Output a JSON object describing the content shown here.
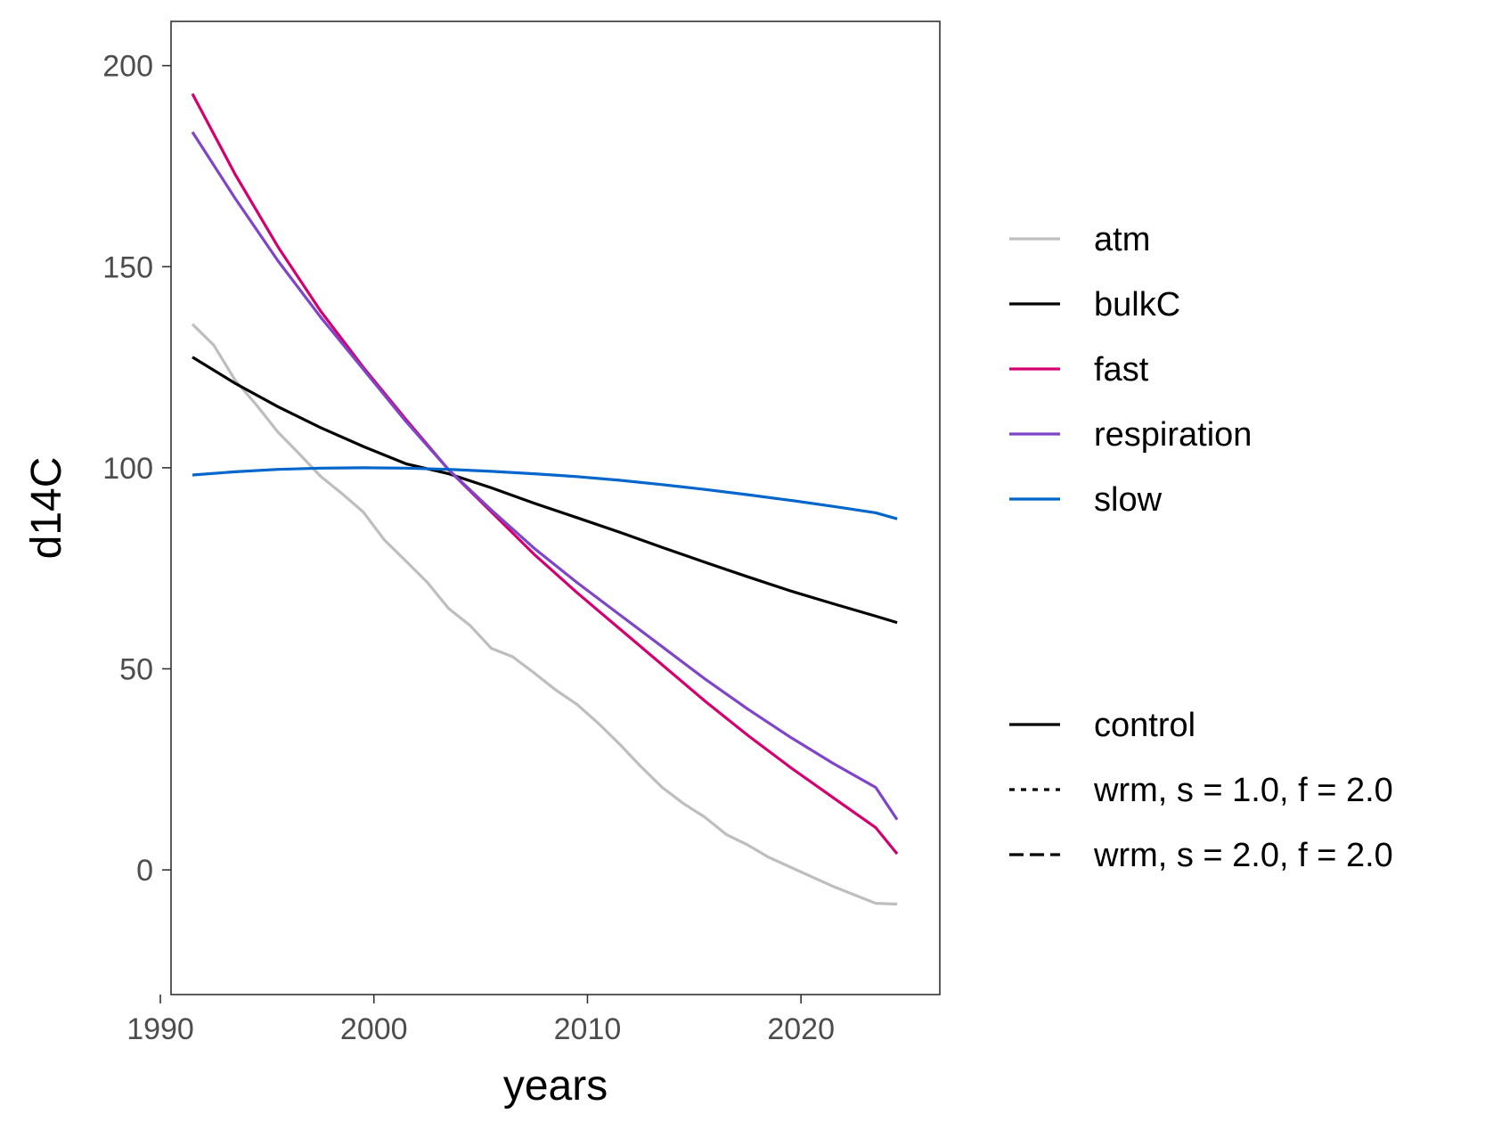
{
  "chart_data": {
    "type": "line",
    "title": "",
    "xlabel": "years",
    "ylabel": "d14C",
    "xlim": [
      1990.5,
      2026.5
    ],
    "ylim": [
      -31,
      211
    ],
    "x_ticks": [
      1990,
      2000,
      2010,
      2020
    ],
    "y_ticks": [
      0,
      50,
      100,
      150,
      200
    ],
    "grid": false,
    "legend_position": "right",
    "series": [
      {
        "name": "atm",
        "color": "#bebebe",
        "x": [
          1991.5,
          1992.5,
          1993.5,
          1994.5,
          1995.5,
          1996.5,
          1997.5,
          1998.5,
          1999.5,
          2000.5,
          2001.5,
          2002.5,
          2003.5,
          2004.5,
          2005.5,
          2006.5,
          2007.5,
          2008.5,
          2009.5,
          2010.5,
          2011.5,
          2012.5,
          2013.5,
          2014.5,
          2015.5,
          2016.5,
          2017.5,
          2018.5,
          2019.5,
          2020.5,
          2021.5,
          2022.5,
          2023.5,
          2024.5
        ],
        "y": [
          135.7,
          130.5,
          121.8,
          115.6,
          108.9,
          103.5,
          97.9,
          93.6,
          89.0,
          82.0,
          76.8,
          71.5,
          65.0,
          60.8,
          55.1,
          53.0,
          49.0,
          44.8,
          41.2,
          36.5,
          31.3,
          25.7,
          20.5,
          16.5,
          13.1,
          8.8,
          6.2,
          3.1,
          0.7,
          -1.7,
          -4.1,
          -6.2,
          -8.3,
          -8.5
        ]
      },
      {
        "name": "bulkC",
        "color": "#000000",
        "x": [
          1991.5,
          1993.5,
          1995.5,
          1997.5,
          1999.5,
          2001.5,
          2003.5,
          2005.5,
          2007.5,
          2009.5,
          2011.5,
          2013.5,
          2015.5,
          2017.5,
          2019.5,
          2021.5,
          2023.5,
          2024.5
        ],
        "y": [
          127.5,
          121.0,
          115.2,
          110.0,
          105.3,
          101.0,
          98.5,
          95.0,
          91.2,
          87.6,
          84.0,
          80.2,
          76.5,
          72.9,
          69.4,
          66.2,
          63.1,
          61.5
        ]
      },
      {
        "name": "fast",
        "color": "#d5006f",
        "x": [
          1991.5,
          1993.5,
          1995.5,
          1997.5,
          1999.5,
          2001.5,
          2003.5,
          2005.5,
          2007.5,
          2009.5,
          2011.5,
          2013.5,
          2015.5,
          2017.5,
          2019.5,
          2021.5,
          2023.5,
          2024.5
        ],
        "y": [
          193.0,
          173.0,
          155.0,
          139.0,
          125.0,
          112.0,
          99.5,
          89.0,
          78.5,
          69.0,
          60.0,
          51.0,
          42.0,
          33.5,
          25.5,
          18.0,
          10.5,
          4.0
        ]
      },
      {
        "name": "respiration",
        "color": "#7f45c8",
        "x": [
          1991.5,
          1993.5,
          1995.5,
          1997.5,
          1999.5,
          2001.5,
          2003.5,
          2005.5,
          2007.5,
          2009.5,
          2011.5,
          2013.5,
          2015.5,
          2017.5,
          2019.5,
          2021.5,
          2023.5,
          2024.5
        ],
        "y": [
          183.5,
          167.0,
          151.5,
          137.5,
          124.5,
          111.5,
          99.5,
          89.5,
          80.0,
          71.5,
          63.5,
          55.5,
          47.5,
          40.0,
          33.0,
          26.5,
          20.5,
          12.5
        ]
      },
      {
        "name": "slow",
        "color": "#0066cc",
        "x": [
          1991.5,
          1993.5,
          1995.5,
          1997.5,
          1999.5,
          2001.5,
          2003.5,
          2005.5,
          2007.5,
          2009.5,
          2011.5,
          2013.5,
          2015.5,
          2017.5,
          2019.5,
          2021.5,
          2023.5,
          2024.5
        ],
        "y": [
          98.2,
          99.0,
          99.6,
          99.9,
          100.0,
          99.9,
          99.6,
          99.1,
          98.5,
          97.8,
          96.9,
          95.8,
          94.6,
          93.3,
          91.9,
          90.4,
          88.8,
          87.3
        ]
      }
    ],
    "legend_color": [
      {
        "label": "atm",
        "color": "#bebebe"
      },
      {
        "label": "bulkC",
        "color": "#000000"
      },
      {
        "label": "fast",
        "color": "#d5006f"
      },
      {
        "label": "respiration",
        "color": "#7f45c8"
      },
      {
        "label": "slow",
        "color": "#0066cc"
      }
    ],
    "legend_linetype": [
      {
        "label": "control",
        "dash": "solid"
      },
      {
        "label": "wrm, s = 1.0, f = 2.0",
        "dash": "dotted"
      },
      {
        "label": "wrm, s = 2.0, f = 2.0",
        "dash": "dashed"
      }
    ]
  }
}
